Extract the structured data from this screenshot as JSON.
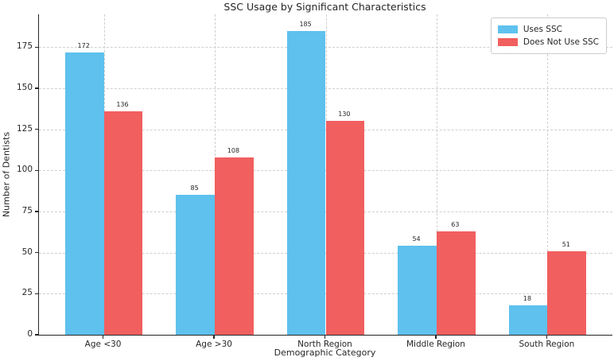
{
  "chart_data": {
    "type": "bar",
    "title": "SSC Usage by Significant Characteristics",
    "xlabel": "Demographic Category",
    "ylabel": "Number of Dentists",
    "categories": [
      "Age <30",
      "Age >30",
      "North Region",
      "Middle Region",
      "South Region"
    ],
    "series": [
      {
        "name": "Uses SSC",
        "color": "#5ec1ee",
        "values": [
          172,
          85,
          185,
          54,
          18
        ]
      },
      {
        "name": "Does Not Use SSC",
        "color": "#f15f5f",
        "values": [
          136,
          108,
          130,
          63,
          51
        ]
      }
    ],
    "yticks": [
      0,
      25,
      50,
      75,
      100,
      125,
      150,
      175
    ],
    "ylim": [
      0,
      195
    ],
    "bar_width": 0.35,
    "grid": "dashed, horizontal and vertical",
    "legend_position": "upper right",
    "bar_value_labels": true,
    "colors": {
      "uses_ssc": "#5ec1ee",
      "does_not_use_ssc": "#f15f5f",
      "grid": "#cfcfcf",
      "text": "#262626",
      "background": "#ffffff"
    }
  }
}
